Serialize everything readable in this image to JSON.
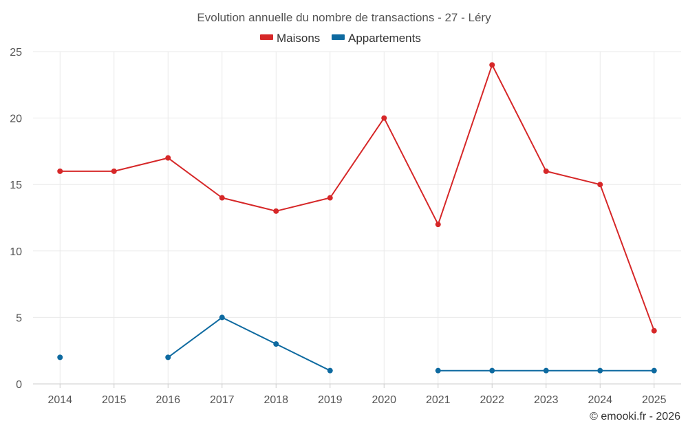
{
  "chart_data": {
    "type": "line",
    "title": "Evolution annuelle du nombre de transactions - 27 - Léry",
    "x": [
      "2014",
      "2015",
      "2016",
      "2017",
      "2018",
      "2019",
      "2020",
      "2021",
      "2022",
      "2023",
      "2024",
      "2025"
    ],
    "series": [
      {
        "name": "Maisons",
        "color": "#d62728",
        "values": [
          16,
          16,
          17,
          14,
          13,
          14,
          20,
          12,
          24,
          16,
          15,
          4
        ]
      },
      {
        "name": "Appartements",
        "color": "#0e6aa0",
        "values": [
          2,
          null,
          2,
          5,
          3,
          1,
          null,
          1,
          1,
          1,
          1,
          1
        ]
      }
    ],
    "yticks": [
      "0",
      "5",
      "10",
      "15",
      "20",
      "25"
    ],
    "ylim": [
      0,
      25
    ],
    "xlabel": "",
    "ylabel": "",
    "grid": true,
    "legend_position": "top-center"
  },
  "credit": "© emooki.fr - 2026"
}
